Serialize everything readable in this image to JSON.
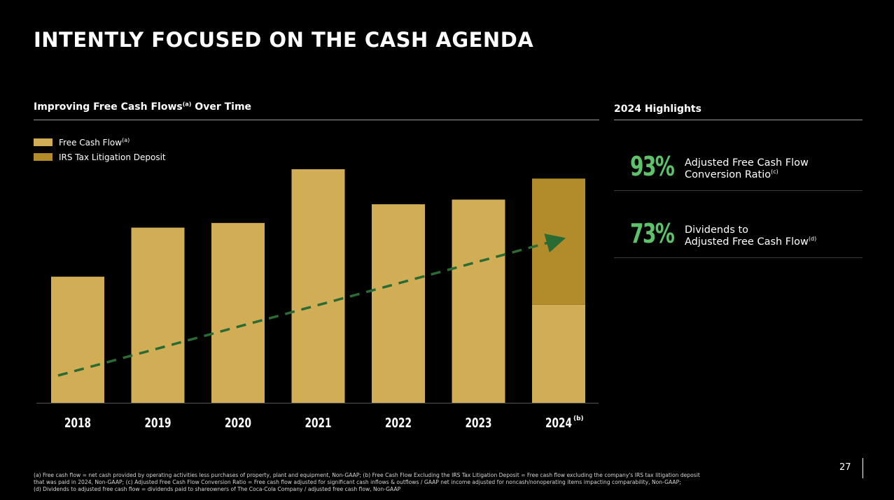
{
  "title": "INTENTLY FOCUSED ON THE CASH AGENDA",
  "left_section": {
    "heading": "Improving Free Cash Flows",
    "heading_sup": "(a)",
    "heading_suffix": " Over Time"
  },
  "right_section": {
    "heading": "2024 Highlights"
  },
  "legend": [
    {
      "label": "Free Cash Flow",
      "sup": "(a)",
      "color": "#d1ad55"
    },
    {
      "label": "IRS Tax Litigation Deposit",
      "sup": "",
      "color": "#b28c2a"
    }
  ],
  "chart_data": {
    "type": "bar",
    "stacked": true,
    "categories": [
      "2018",
      "2019",
      "2020",
      "2021",
      "2022",
      "2023",
      "2024"
    ],
    "category_notes": [
      "",
      "",
      "",
      "",
      "",
      "",
      "(b)"
    ],
    "series": [
      {
        "name": "Free Cash Flow",
        "sup": "(a)",
        "color": "#d1ad55",
        "values": [
          5.4,
          7.5,
          7.7,
          10.0,
          8.5,
          8.7,
          4.2
        ]
      },
      {
        "name": "IRS Tax Litigation Deposit",
        "sup": "",
        "color": "#b28c2a",
        "values": [
          0,
          0,
          0,
          0,
          0,
          0,
          5.4
        ]
      }
    ],
    "ylim": [
      0,
      10.0
    ],
    "y_axis_visible": false,
    "trend_line": {
      "style": "dashed",
      "color": "#2a6b34",
      "direction": "upward",
      "arrow": true
    },
    "grid": false,
    "legend_position": "top-left"
  },
  "highlights": [
    {
      "value": "93%",
      "label": "Adjusted Free Cash Flow\nConversion Ratio",
      "sup": "(c)"
    },
    {
      "value": "73%",
      "label": "Dividends to\nAdjusted Free Cash Flow",
      "sup": "(d)"
    }
  ],
  "footnote": "(a) Free cash flow = net cash provided by operating activities less purchases of property, plant and equipment, Non-GAAP; (b) Free Cash Flow Excluding the IRS Tax Litigation Deposit = Free cash flow excluding the company's IRS tax litigation deposit\nthat was paid in 2024, Non-GAAP; (c) Adjusted Free Cash Flow Conversion Ratio = Free cash flow adjusted for significant cash inflows & outflows / GAAP net income adjusted for noncash/nonoperating items impacting comparability, Non-GAAP;\n(d) Dividends to adjusted free cash flow = dividends paid to shareowners of The Coca-Cola Company / adjusted free cash flow, Non-GAAP",
  "page_number": "27"
}
